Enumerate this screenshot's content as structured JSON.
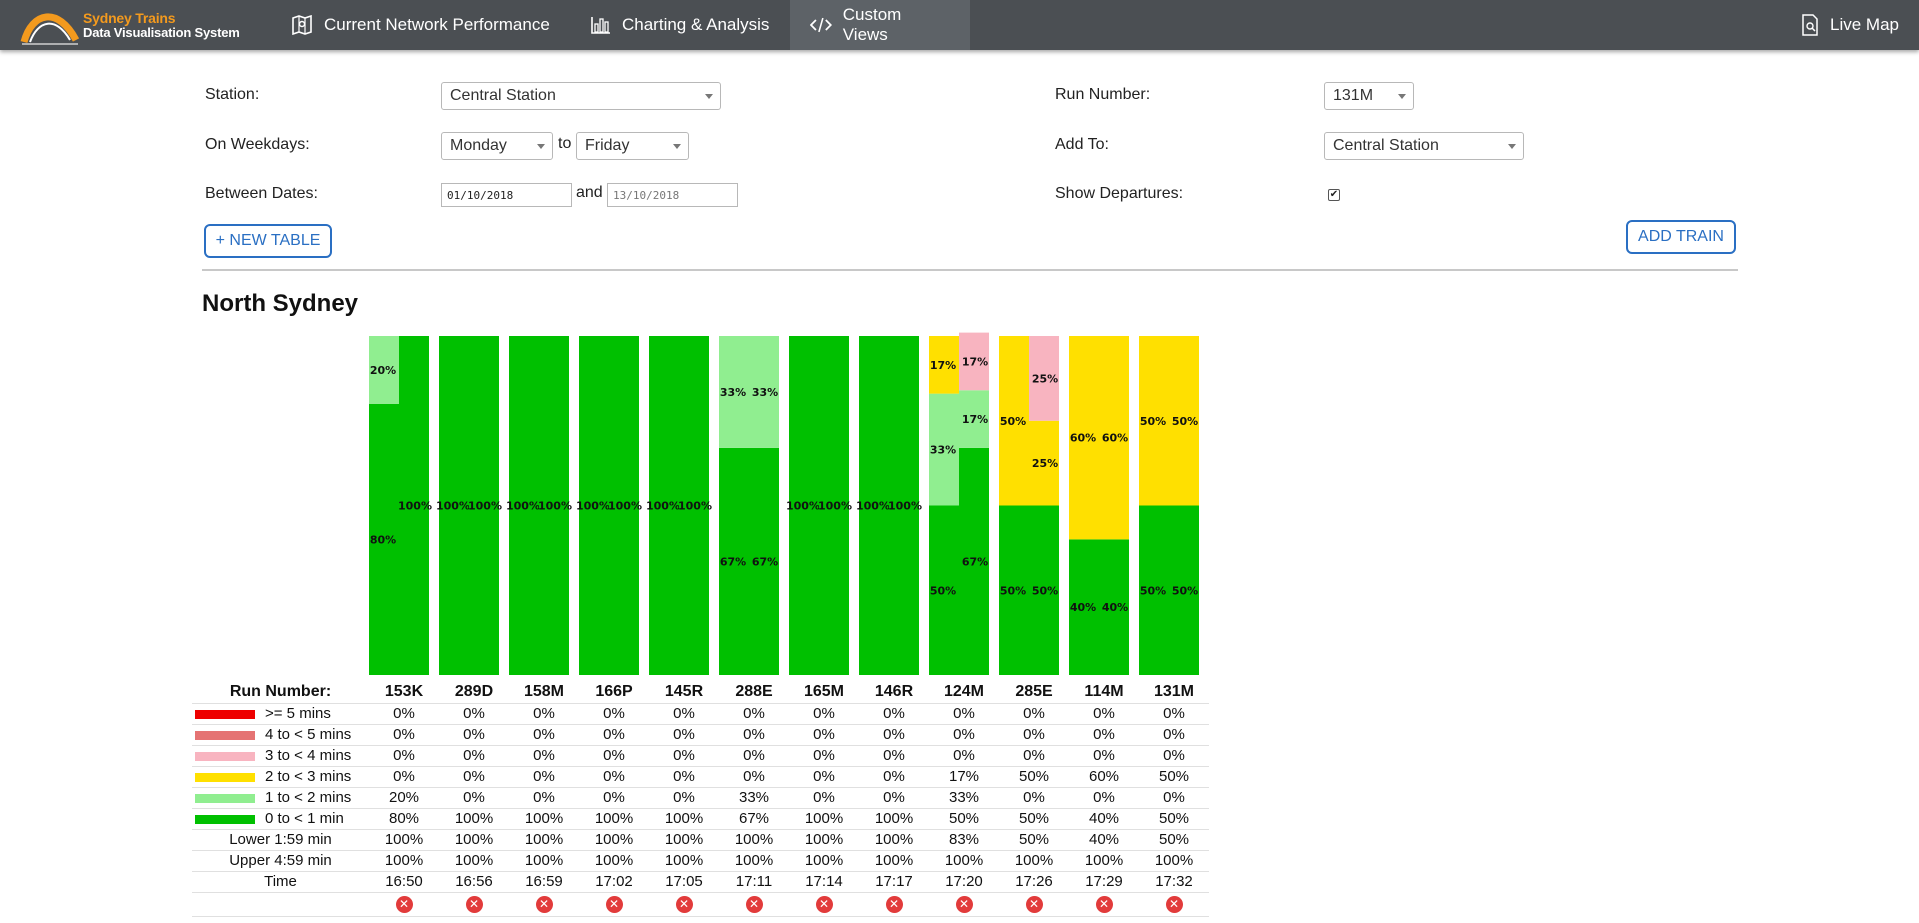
{
  "nav": {
    "brand_line1": "Sydney Trains",
    "brand_line2": "Data Visualisation System",
    "items": [
      {
        "label": "Current Network Performance",
        "icon": "map-icon"
      },
      {
        "label": "Charting & Analysis",
        "icon": "bar-chart-icon"
      },
      {
        "label": "Custom Views",
        "icon": "code-icon",
        "active": true
      }
    ],
    "live_map": {
      "label": "Live Map",
      "icon": "document-search-icon"
    }
  },
  "form": {
    "station_label": "Station:",
    "station_value": "Central Station",
    "weekdays_label": "On Weekdays:",
    "weekday_from": "Monday",
    "weekday_to_word": "to",
    "weekday_to": "Friday",
    "dates_label": "Between Dates:",
    "date_from": "01/10/2018",
    "date_and_word": "and",
    "date_to": "13/10/2018",
    "new_table_button": "+ NEW TABLE",
    "run_number_label": "Run Number:",
    "run_number_value": "131M",
    "add_to_label": "Add To:",
    "add_to_value": "Central Station",
    "show_departures_label": "Show Departures:",
    "show_departures_checked": true,
    "add_train_button": "ADD TRAIN"
  },
  "section_title": "North Sydney",
  "colors": {
    "ge5": "#ee0000",
    "4to5": "#e57373",
    "3to4": "#f8b4c0",
    "2to3": "#ffe000",
    "1to2": "#90ee90",
    "0to1": "#00c000"
  },
  "table": {
    "run_number_header": "Run Number:",
    "runs": [
      "153K",
      "289D",
      "158M",
      "166P",
      "145R",
      "288E",
      "165M",
      "146R",
      "124M",
      "285E",
      "114M",
      "131M"
    ],
    "categories": [
      {
        "key": "ge5",
        "label": ">= 5 mins",
        "values": [
          "0%",
          "0%",
          "0%",
          "0%",
          "0%",
          "0%",
          "0%",
          "0%",
          "0%",
          "0%",
          "0%",
          "0%"
        ]
      },
      {
        "key": "4to5",
        "label": "4 to < 5 mins",
        "values": [
          "0%",
          "0%",
          "0%",
          "0%",
          "0%",
          "0%",
          "0%",
          "0%",
          "0%",
          "0%",
          "0%",
          "0%"
        ]
      },
      {
        "key": "3to4",
        "label": "3 to < 4 mins",
        "values": [
          "0%",
          "0%",
          "0%",
          "0%",
          "0%",
          "0%",
          "0%",
          "0%",
          "0%",
          "0%",
          "0%",
          "0%"
        ]
      },
      {
        "key": "2to3",
        "label": "2 to < 3 mins",
        "values": [
          "0%",
          "0%",
          "0%",
          "0%",
          "0%",
          "0%",
          "0%",
          "0%",
          "17%",
          "50%",
          "60%",
          "50%"
        ]
      },
      {
        "key": "1to2",
        "label": "1 to < 2 mins",
        "values": [
          "20%",
          "0%",
          "0%",
          "0%",
          "0%",
          "33%",
          "0%",
          "0%",
          "33%",
          "0%",
          "0%",
          "0%"
        ]
      },
      {
        "key": "0to1",
        "label": "0 to < 1 min",
        "values": [
          "80%",
          "100%",
          "100%",
          "100%",
          "100%",
          "67%",
          "100%",
          "100%",
          "50%",
          "50%",
          "40%",
          "50%"
        ]
      }
    ],
    "lower_label": "Lower 1:59 min",
    "lower": [
      "100%",
      "100%",
      "100%",
      "100%",
      "100%",
      "100%",
      "100%",
      "100%",
      "83%",
      "50%",
      "40%",
      "50%"
    ],
    "upper_label": "Upper 4:59 min",
    "upper": [
      "100%",
      "100%",
      "100%",
      "100%",
      "100%",
      "100%",
      "100%",
      "100%",
      "100%",
      "100%",
      "100%",
      "100%"
    ],
    "time_label": "Time",
    "times": [
      "16:50",
      "16:56",
      "16:59",
      "17:02",
      "17:05",
      "17:11",
      "17:14",
      "17:17",
      "17:20",
      "17:26",
      "17:29",
      "17:32"
    ],
    "remove_icon": "remove-x-icon"
  },
  "chart_data": {
    "type": "bar",
    "stacked": true,
    "ylim": [
      0,
      100
    ],
    "categories": [
      "153K",
      "289D",
      "158M",
      "166P",
      "145R",
      "288E",
      "165M",
      "146R",
      "124M",
      "285E",
      "114M",
      "131M"
    ],
    "series_note_order": "bottom to top: 0to1, 1to2, 2to3, 3to4",
    "arrivals": [
      {
        "0to1": 80,
        "1to2": 20,
        "2to3": 0,
        "3to4": 0
      },
      {
        "0to1": 100,
        "1to2": 0,
        "2to3": 0,
        "3to4": 0
      },
      {
        "0to1": 100,
        "1to2": 0,
        "2to3": 0,
        "3to4": 0
      },
      {
        "0to1": 100,
        "1to2": 0,
        "2to3": 0,
        "3to4": 0
      },
      {
        "0to1": 100,
        "1to2": 0,
        "2to3": 0,
        "3to4": 0
      },
      {
        "0to1": 67,
        "1to2": 33,
        "2to3": 0,
        "3to4": 0
      },
      {
        "0to1": 100,
        "1to2": 0,
        "2to3": 0,
        "3to4": 0
      },
      {
        "0to1": 100,
        "1to2": 0,
        "2to3": 0,
        "3to4": 0
      },
      {
        "0to1": 50,
        "1to2": 33,
        "2to3": 17,
        "3to4": 0
      },
      {
        "0to1": 50,
        "1to2": 0,
        "2to3": 50,
        "3to4": 0
      },
      {
        "0to1": 40,
        "1to2": 0,
        "2to3": 60,
        "3to4": 0
      },
      {
        "0to1": 50,
        "1to2": 0,
        "2to3": 50,
        "3to4": 0
      }
    ],
    "departures": [
      {
        "0to1": 100,
        "1to2": 0,
        "2to3": 0,
        "3to4": 0
      },
      {
        "0to1": 100,
        "1to2": 0,
        "2to3": 0,
        "3to4": 0
      },
      {
        "0to1": 100,
        "1to2": 0,
        "2to3": 0,
        "3to4": 0
      },
      {
        "0to1": 100,
        "1to2": 0,
        "2to3": 0,
        "3to4": 0
      },
      {
        "0to1": 100,
        "1to2": 0,
        "2to3": 0,
        "3to4": 0
      },
      {
        "0to1": 67,
        "1to2": 33,
        "2to3": 0,
        "3to4": 0
      },
      {
        "0to1": 100,
        "1to2": 0,
        "2to3": 0,
        "3to4": 0
      },
      {
        "0to1": 100,
        "1to2": 0,
        "2to3": 0,
        "3to4": 0
      },
      {
        "0to1": 67,
        "1to2": 17,
        "2to3": 0,
        "3to4": 17
      },
      {
        "0to1": 50,
        "1to2": 0,
        "2to3": 25,
        "3to4": 25
      },
      {
        "0to1": 40,
        "1to2": 0,
        "2to3": 60,
        "3to4": 0
      },
      {
        "0to1": 50,
        "1to2": 0,
        "2to3": 50,
        "3to4": 0
      }
    ]
  }
}
